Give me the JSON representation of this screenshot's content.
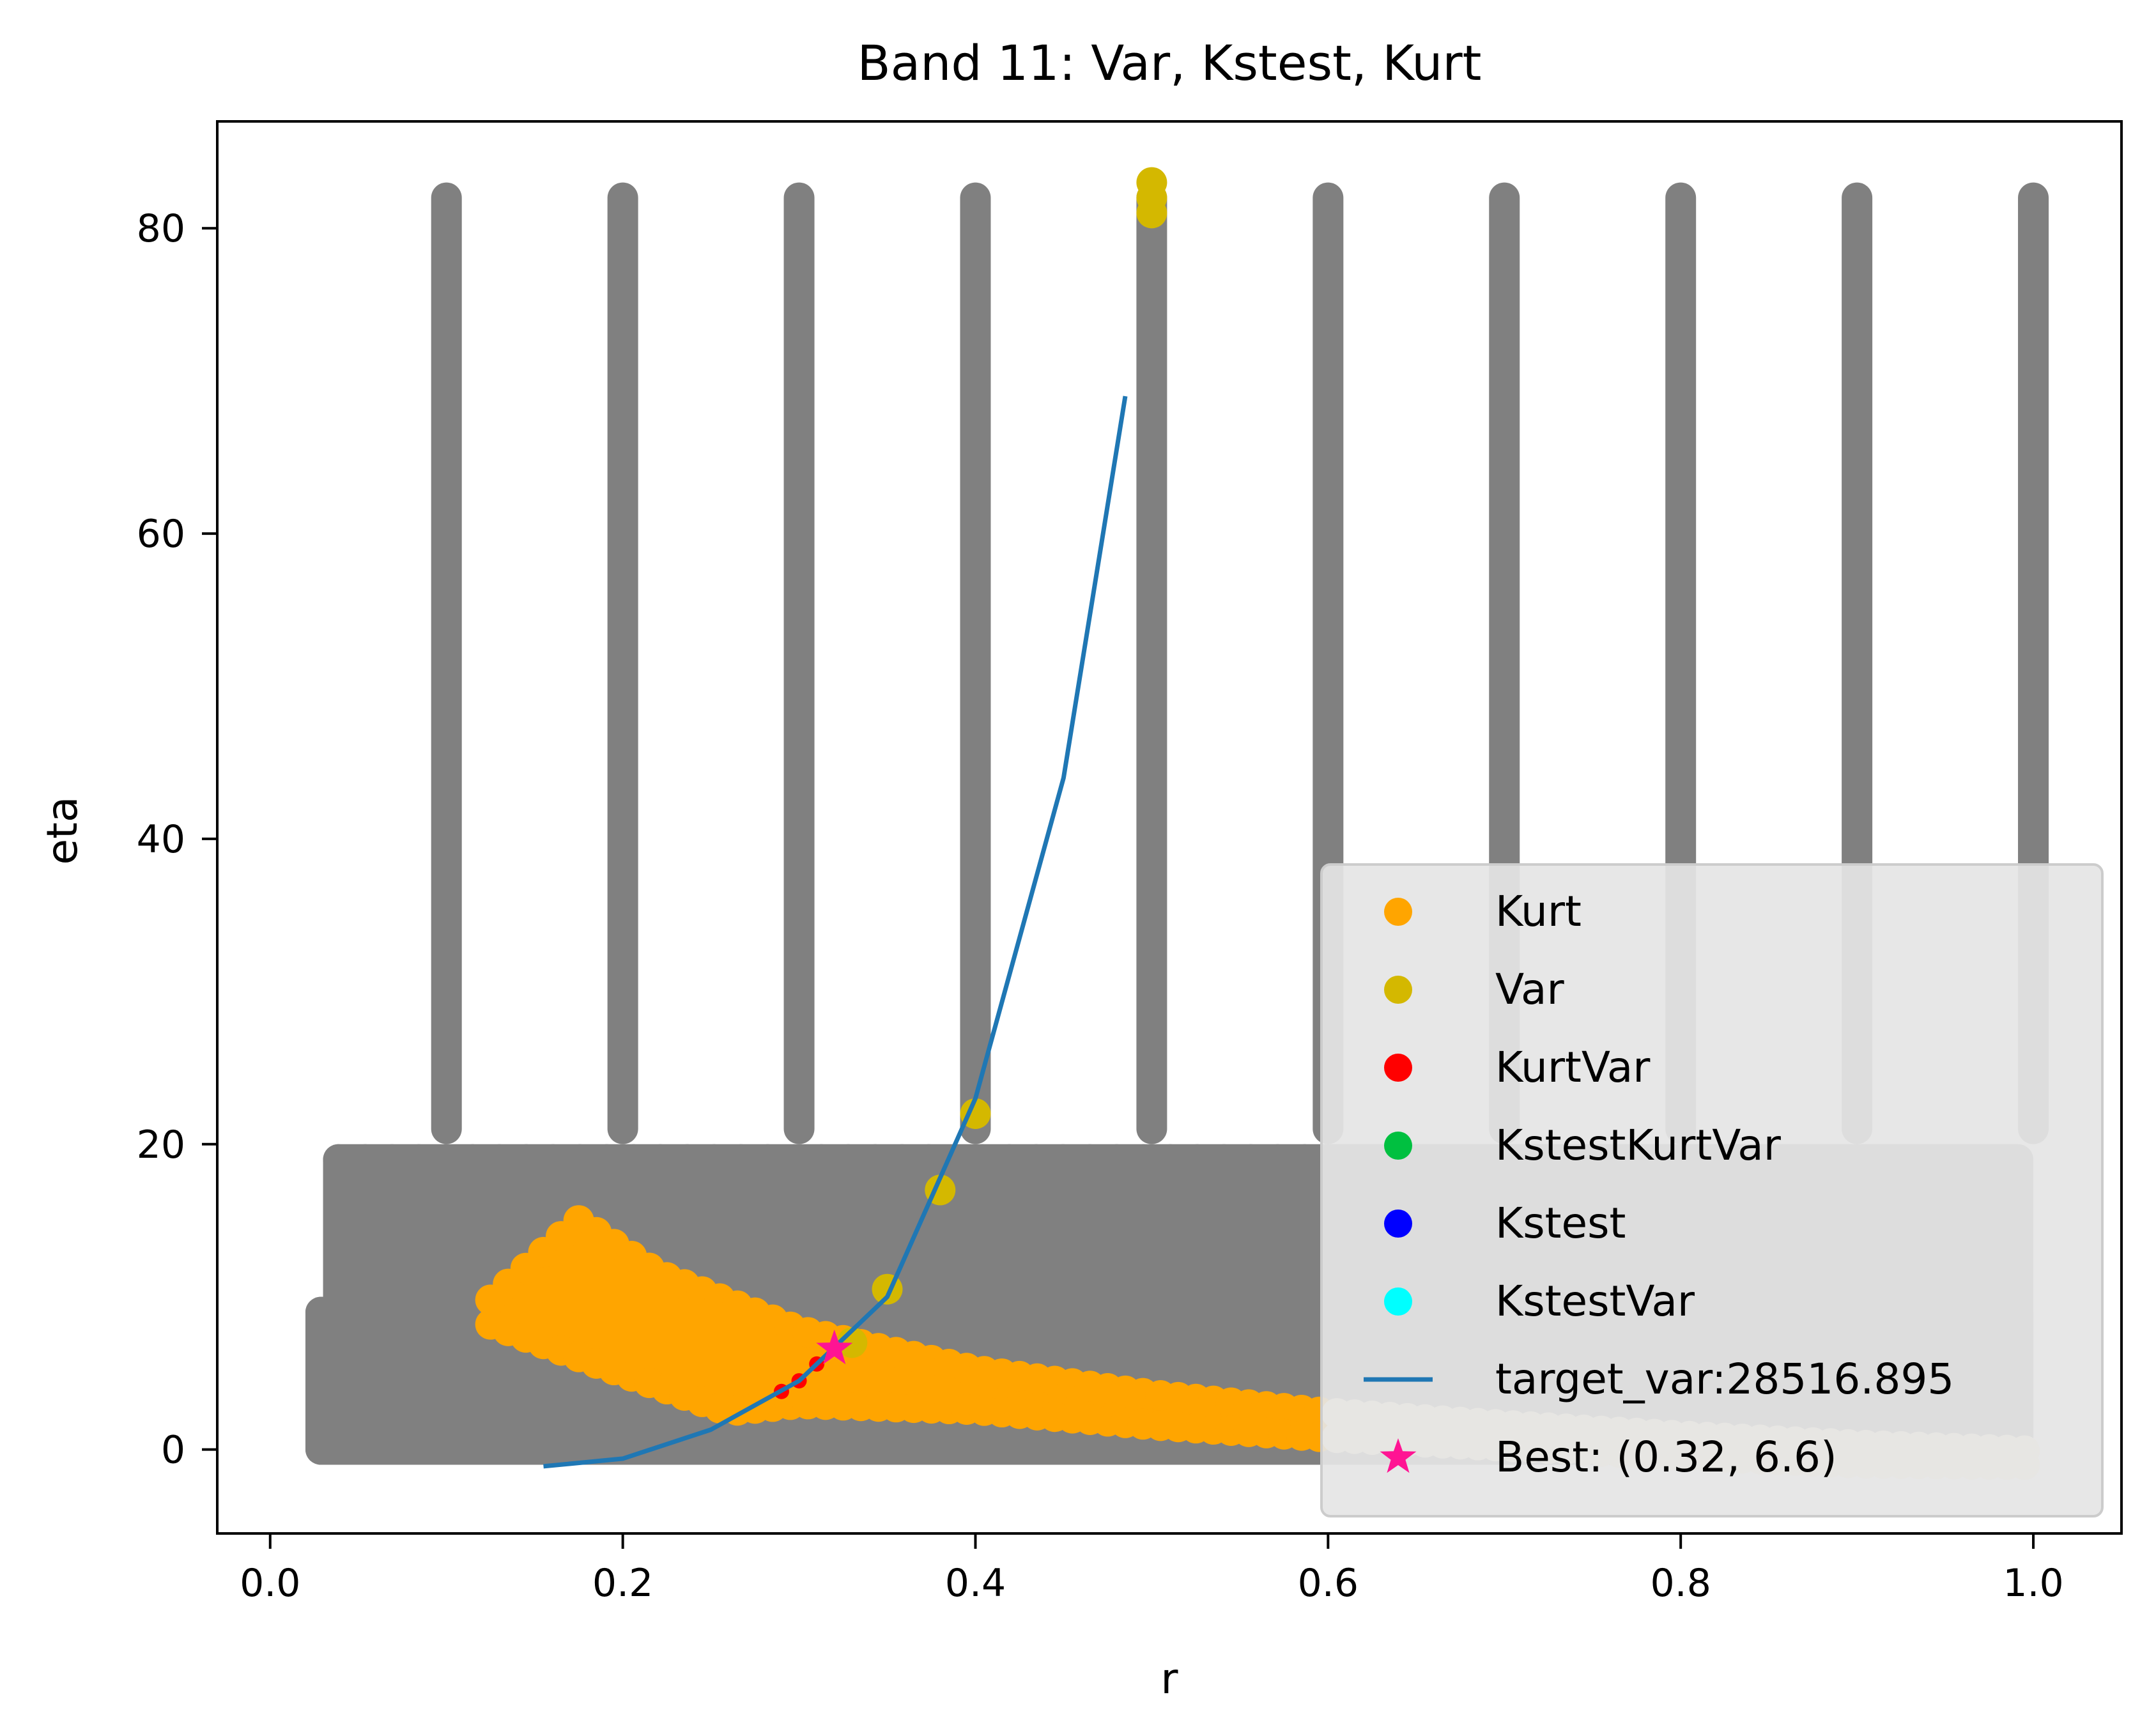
{
  "chart_data": {
    "type": "scatter",
    "title": "Band 11: Var, Kstest, Kurt",
    "xlabel": "r",
    "ylabel": "eta",
    "xlim": [
      -0.03,
      1.05
    ],
    "ylim": [
      -5.5,
      87
    ],
    "xticks": [
      0.0,
      0.2,
      0.4,
      0.6,
      0.8,
      1.0
    ],
    "xtick_labels": [
      "0.0",
      "0.2",
      "0.4",
      "0.6",
      "0.8",
      "1.0"
    ],
    "yticks": [
      0,
      20,
      40,
      60,
      80
    ],
    "ytick_labels": [
      "0",
      "20",
      "40",
      "60",
      "80"
    ],
    "grid": false,
    "legend_position": "lower-right",
    "grid_points": {
      "color": "#808080",
      "low_band": {
        "x_start": 0.02,
        "x_end": 1.0,
        "y_min": -1,
        "y_max": 10
      },
      "mid_band": {
        "x_start": 0.03,
        "x_end": 1.0,
        "y_min": -1,
        "y_max": 20
      },
      "tall_columns": {
        "x": [
          0.1,
          0.2,
          0.3,
          0.4,
          0.5,
          0.6,
          0.7,
          0.8,
          0.9,
          1.0
        ],
        "y_min": 20,
        "y_max": 83
      }
    },
    "kurt_region": {
      "color": "#FFA500",
      "light_color": "#FFE8C4",
      "upper_edge": [
        [
          0.125,
          9.8
        ],
        [
          0.175,
          15.0
        ],
        [
          0.22,
          11.5
        ],
        [
          0.3,
          7.8
        ],
        [
          0.4,
          5.2
        ],
        [
          0.5,
          3.6
        ],
        [
          0.6,
          2.4
        ],
        [
          0.7,
          1.6
        ],
        [
          0.8,
          0.9
        ],
        [
          0.9,
          0.3
        ],
        [
          1.0,
          -0.1
        ]
      ],
      "lower_edge": [
        [
          0.125,
          8.2
        ],
        [
          0.2,
          5.0
        ],
        [
          0.26,
          2.5
        ],
        [
          0.3,
          3.0
        ],
        [
          0.4,
          2.6
        ],
        [
          0.5,
          1.6
        ],
        [
          0.6,
          0.8
        ],
        [
          0.7,
          0.2
        ],
        [
          0.8,
          -0.4
        ],
        [
          0.9,
          -0.9
        ],
        [
          1.0,
          -1.0
        ]
      ],
      "light_from_x": 0.6
    },
    "series": [
      {
        "name": "Kurt",
        "color": "#FFA500",
        "marker": "circle"
      },
      {
        "name": "Var",
        "color": "#D4B800",
        "marker": "circle",
        "points": [
          [
            0.5,
            83
          ],
          [
            0.5,
            82
          ],
          [
            0.5,
            81
          ],
          [
            0.4,
            22
          ],
          [
            0.38,
            17
          ],
          [
            0.35,
            10.5
          ],
          [
            0.33,
            7
          ]
        ]
      },
      {
        "name": "KurtVar",
        "color": "#FF0000",
        "marker": "circle",
        "points": [
          [
            0.29,
            3.8
          ],
          [
            0.3,
            4.5
          ],
          [
            0.31,
            5.6
          ]
        ]
      },
      {
        "name": "KstestKurtVar",
        "color": "#00C040",
        "marker": "circle",
        "points": []
      },
      {
        "name": "Kstest",
        "color": "#0000FF",
        "marker": "circle",
        "points": []
      },
      {
        "name": "KstestVar",
        "color": "#00FFFF",
        "marker": "circle",
        "points": []
      },
      {
        "name": "target_var:28516.895",
        "color": "#1F77B4",
        "type": "line",
        "points": [
          [
            0.155,
            -1.1
          ],
          [
            0.2,
            -0.6
          ],
          [
            0.25,
            1.3
          ],
          [
            0.3,
            4.5
          ],
          [
            0.35,
            10.0
          ],
          [
            0.4,
            23.0
          ],
          [
            0.45,
            44.0
          ],
          [
            0.485,
            69.0
          ]
        ]
      },
      {
        "name": "Best: (0.32, 6.6)",
        "color": "#FF1493",
        "marker": "star",
        "points": [
          [
            0.32,
            6.6
          ]
        ]
      }
    ]
  }
}
